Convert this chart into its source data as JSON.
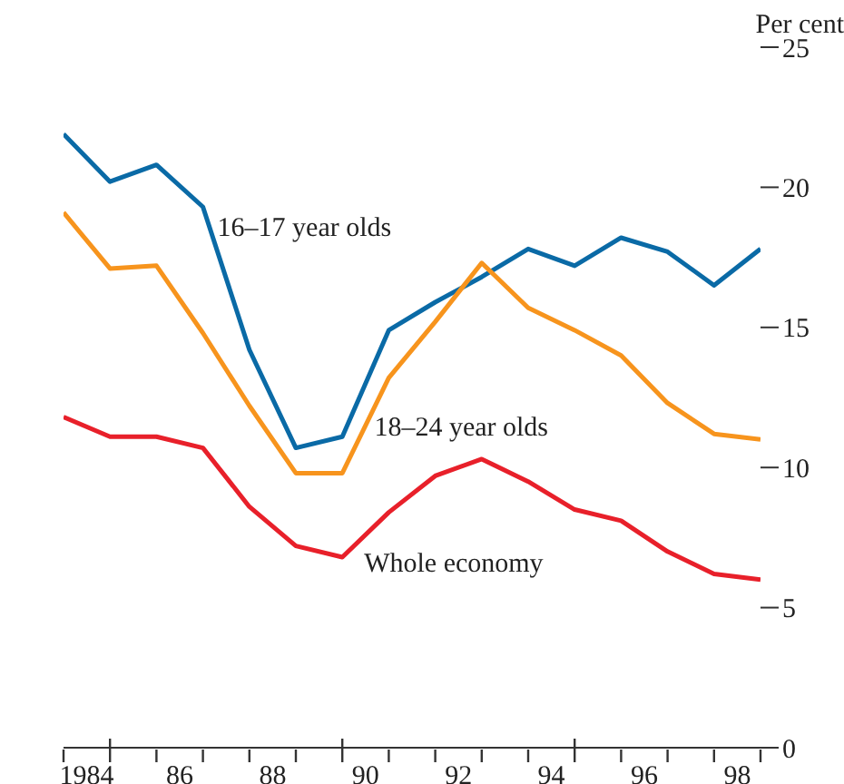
{
  "chart_data": {
    "type": "line",
    "y2label": "Per cent",
    "x": [
      1983.5,
      1984.5,
      1985.5,
      1986.5,
      1987.5,
      1988.5,
      1989.5,
      1990.5,
      1991.5,
      1992.5,
      1993.5,
      1994.5,
      1995.5,
      1996.5,
      1997.5,
      1998.5
    ],
    "series": [
      {
        "name": "16–17 year olds",
        "color": "#0a6aa6",
        "axis": "y2",
        "values": [
          21.9,
          20.2,
          20.8,
          19.3,
          14.2,
          10.7,
          11.1,
          14.9,
          15.9,
          16.8,
          17.8,
          17.2,
          18.2,
          17.7,
          16.5,
          17.8
        ]
      },
      {
        "name": "18–24 year olds",
        "color": "#f7941d",
        "axis": "y2",
        "values": [
          19.1,
          17.1,
          17.2,
          14.8,
          12.2,
          9.8,
          9.8,
          13.2,
          15.2,
          17.3,
          15.7,
          14.9,
          14.0,
          12.3,
          11.2,
          11.0
        ]
      },
      {
        "name": "Whole economy",
        "color": "#e8202a",
        "axis": "y2",
        "values": [
          11.8,
          11.1,
          11.1,
          10.7,
          8.6,
          7.2,
          6.8,
          8.4,
          9.7,
          10.3,
          9.5,
          8.5,
          8.1,
          7.0,
          6.2,
          6.0
        ]
      }
    ],
    "xlim": [
      1983.5,
      1998.5
    ],
    "xticks": [
      {
        "value": 1983.5,
        "label": null
      },
      {
        "value": 1984,
        "label": "1984"
      },
      {
        "value": 1984.5,
        "label": null
      },
      {
        "value": 1985.5,
        "label": null
      },
      {
        "value": 1986,
        "label": "86"
      },
      {
        "value": 1986.5,
        "label": null
      },
      {
        "value": 1987.5,
        "label": null
      },
      {
        "value": 1988,
        "label": "88"
      },
      {
        "value": 1988.5,
        "label": null
      },
      {
        "value": 1989.5,
        "label": null
      },
      {
        "value": 1990,
        "label": "90"
      },
      {
        "value": 1990.5,
        "label": null
      },
      {
        "value": 1991.5,
        "label": null
      },
      {
        "value": 1992,
        "label": "92"
      },
      {
        "value": 1992.5,
        "label": null
      },
      {
        "value": 1993.5,
        "label": null
      },
      {
        "value": 1994,
        "label": "94"
      },
      {
        "value": 1994.5,
        "label": null
      },
      {
        "value": 1995.5,
        "label": null
      },
      {
        "value": 1996,
        "label": "96"
      },
      {
        "value": 1996.5,
        "label": null
      },
      {
        "value": 1997.5,
        "label": null
      },
      {
        "value": 1998,
        "label": "98"
      },
      {
        "value": 1998.5,
        "label": null
      }
    ],
    "y2lim": [
      0,
      25
    ],
    "y2ticks": [
      0,
      5,
      10,
      15,
      20,
      25
    ],
    "line_style": "solid"
  }
}
